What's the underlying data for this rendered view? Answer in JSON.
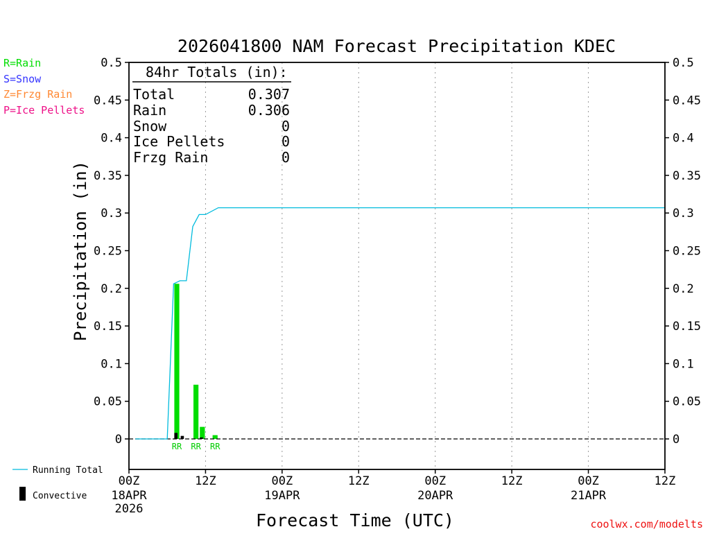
{
  "legend_types": [
    {
      "label": "R=Rain",
      "color": "#00dd00"
    },
    {
      "label": "S=Snow",
      "color": "#3333ff"
    },
    {
      "label": "Z=Frzg Rain",
      "color": "#ff8833"
    },
    {
      "label": "P=Ice Pellets",
      "color": "#ee1188"
    }
  ],
  "totals_box": {
    "title": "84hr Totals (in):",
    "rows": [
      {
        "label": "Total",
        "value": "0.307"
      },
      {
        "label": "Rain",
        "value": "0.306"
      },
      {
        "label": "Snow",
        "value": "0"
      },
      {
        "label": "Ice Pellets",
        "value": "0"
      },
      {
        "label": "Frzg Rain",
        "value": "0"
      }
    ]
  },
  "bottom_legend": {
    "running_total": "Running Total",
    "convective": "Convective",
    "running_total_color": "#00bbdd",
    "convective_color": "#000000"
  },
  "credit": "coolwx.com/modelts",
  "chart_data": {
    "type": "bar",
    "title": "2026041800 NAM Forecast Precipitation KDEC",
    "xlabel": "Forecast Time (UTC)",
    "ylabel": "Precipitation (in)",
    "x_unit": "forecast hour from 2026-04-18 00Z",
    "xlim": [
      0,
      84
    ],
    "ylim": [
      -0.04,
      0.5
    ],
    "yticks": [
      "0",
      "0.05",
      "0.1",
      "0.15",
      "0.2",
      "0.25",
      "0.3",
      "0.35",
      "0.4",
      "0.45",
      "0.5"
    ],
    "ytick_values": [
      0,
      0.05,
      0.1,
      0.15,
      0.2,
      0.25,
      0.3,
      0.35,
      0.4,
      0.45,
      0.5
    ],
    "xticks": [
      {
        "hour": 0,
        "label": "00Z",
        "sub": [
          "18APR",
          "2026"
        ]
      },
      {
        "hour": 12,
        "label": "12Z",
        "sub": []
      },
      {
        "hour": 24,
        "label": "00Z",
        "sub": [
          "19APR"
        ]
      },
      {
        "hour": 36,
        "label": "12Z",
        "sub": []
      },
      {
        "hour": 48,
        "label": "00Z",
        "sub": [
          "20APR"
        ]
      },
      {
        "hour": 60,
        "label": "12Z",
        "sub": []
      },
      {
        "hour": 72,
        "label": "00Z",
        "sub": [
          "21APR"
        ]
      },
      {
        "hour": 84,
        "label": "12Z",
        "sub": []
      }
    ],
    "precip_bars": [
      {
        "hour": 7,
        "value": 0.206
      },
      {
        "hour": 10,
        "value": 0.072
      },
      {
        "hour": 11,
        "value": 0.016
      },
      {
        "hour": 13,
        "value": 0.005
      }
    ],
    "convective_bars": [
      {
        "hour": 7,
        "value": 0.008
      },
      {
        "hour": 8,
        "value": 0.004
      },
      {
        "hour": 11,
        "value": 0.002
      }
    ],
    "type_labels": [
      {
        "hour": 7.5,
        "text": "RR"
      },
      {
        "hour": 10.5,
        "text": "RR"
      },
      {
        "hour": 13.5,
        "text": "RR"
      }
    ],
    "running_total": {
      "hours": [
        1,
        6,
        7,
        8,
        9,
        10,
        11,
        12,
        14,
        84
      ],
      "values": [
        0,
        0,
        0.206,
        0.21,
        0.21,
        0.282,
        0.298,
        0.298,
        0.307,
        0.307
      ]
    },
    "grid": "vertical dotted",
    "legend": "left"
  }
}
